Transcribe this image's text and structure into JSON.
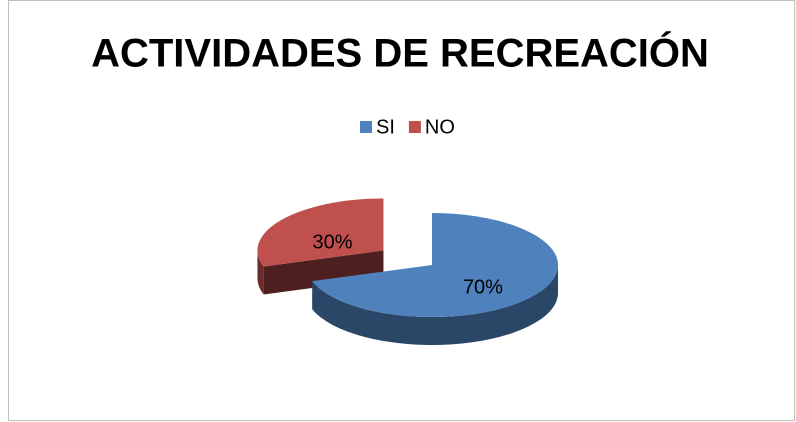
{
  "chart_data": {
    "type": "pie",
    "title": "ACTIVIDADES DE RECREACIÓN",
    "categories": [
      "SI",
      "NO"
    ],
    "values": [
      70,
      30
    ],
    "value_labels": [
      "70%",
      "30%"
    ],
    "colors": [
      "#4f81bd",
      "#c0504d"
    ],
    "explode": [
      false,
      true
    ],
    "legend": "top"
  }
}
